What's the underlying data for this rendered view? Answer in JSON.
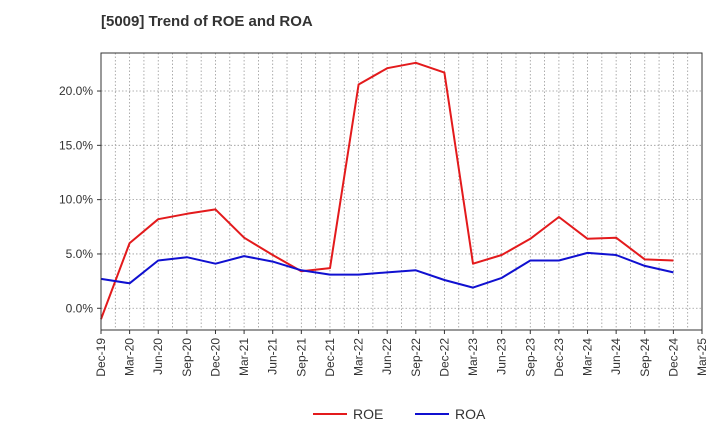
{
  "chart_data": {
    "type": "line",
    "title": "[5009]  Trend of ROE and ROA",
    "x": [
      "Dec-19",
      "Mar-20",
      "Jun-20",
      "Sep-20",
      "Dec-20",
      "Mar-21",
      "Jun-21",
      "Sep-21",
      "Dec-21",
      "Mar-22",
      "Jun-22",
      "Sep-22",
      "Dec-22",
      "Mar-23",
      "Jun-23",
      "Sep-23",
      "Dec-23",
      "Mar-24",
      "Jun-24",
      "Sep-24",
      "Dec-24",
      "Mar-25"
    ],
    "yticks": [
      0,
      5,
      10,
      15,
      20
    ],
    "ytick_labels": [
      "0.0%",
      "5.0%",
      "10.0%",
      "15.0%",
      "20.0%"
    ],
    "ylim": [
      -2.0,
      23.5
    ],
    "grid": true,
    "legend_position": "bottom-center",
    "series": [
      {
        "name": "ROE",
        "color": "#e31a1c",
        "values": [
          -1.0,
          6.0,
          8.2,
          8.7,
          9.1,
          6.5,
          4.9,
          3.4,
          3.7,
          20.6,
          22.1,
          22.6,
          21.7,
          4.1,
          4.9,
          6.4,
          8.4,
          6.4,
          6.5,
          4.5,
          4.4,
          null
        ]
      },
      {
        "name": "ROA",
        "color": "#1010d0",
        "values": [
          2.7,
          2.3,
          4.4,
          4.7,
          4.1,
          4.8,
          4.3,
          3.5,
          3.1,
          3.1,
          3.3,
          3.5,
          2.6,
          1.9,
          2.8,
          4.4,
          4.4,
          5.1,
          4.9,
          3.9,
          3.3,
          null
        ]
      }
    ]
  }
}
